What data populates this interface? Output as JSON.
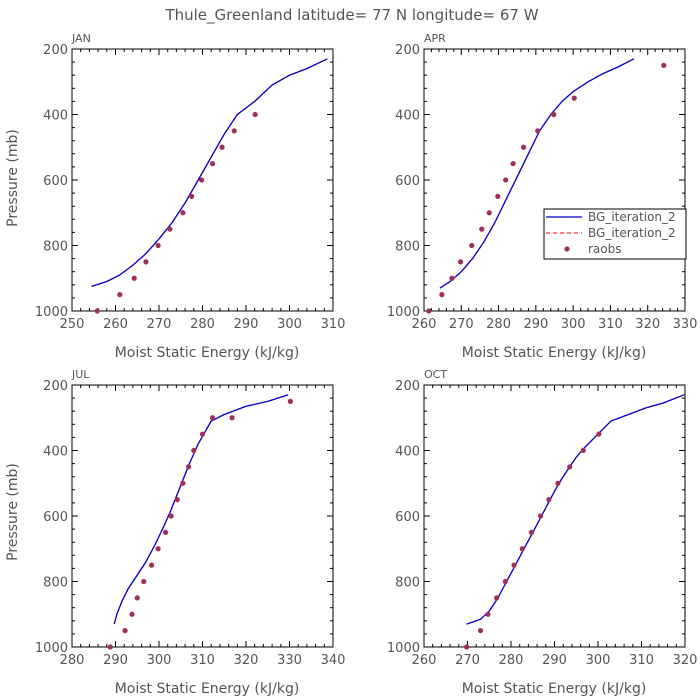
{
  "title": "Thule_Greenland  latitude= 77 N longitude= 67 W",
  "colors": {
    "model": "#0000cc",
    "model_dashed": "#ff3333",
    "raobs": "#a0305a",
    "axis": "#000000",
    "text": "#555555"
  },
  "legend": {
    "entries": [
      "BG_iteration_2",
      "BG_iteration_2",
      "raobs"
    ]
  },
  "chart_data": [
    {
      "type": "line",
      "panel": "JAN",
      "xlabel": "Moist Static Energy (kJ/kg)",
      "ylabel": "Pressure (mb)",
      "xlim": [
        250,
        310
      ],
      "ylim": [
        1000,
        200
      ],
      "xticks": [
        "250",
        "260",
        "270",
        "280",
        "290",
        "300",
        "310"
      ],
      "yticks": [
        "1000",
        "800",
        "600",
        "400",
        "200"
      ],
      "series": [
        {
          "name": "BG_iteration_2",
          "style": "solid",
          "x": [
            254.5,
            258,
            261,
            264,
            267,
            270,
            273,
            276,
            279,
            282,
            285,
            288,
            292,
            296,
            300,
            304,
            308.7
          ],
          "y": [
            925,
            910,
            890,
            860,
            825,
            780,
            730,
            670,
            600,
            530,
            460,
            400,
            360,
            310,
            280,
            260,
            230
          ]
        }
      ],
      "raobs": {
        "x": [
          255.8,
          261,
          264.3,
          267,
          269.8,
          272.5,
          275.5,
          277.5,
          279.8,
          282.3,
          284.5,
          287.3,
          292.1
        ],
        "y": [
          1000,
          950,
          900,
          850,
          800,
          750,
          700,
          650,
          600,
          550,
          500,
          450,
          400
        ]
      }
    },
    {
      "type": "line",
      "panel": "APR",
      "xlabel": "Moist Static Energy (kJ/kg)",
      "ylabel": "",
      "xlim": [
        260,
        330
      ],
      "ylim": [
        1000,
        200
      ],
      "xticks": [
        "260",
        "270",
        "280",
        "290",
        "300",
        "310",
        "320",
        "330"
      ],
      "yticks": [
        "1000",
        "800",
        "600",
        "400",
        "200"
      ],
      "series": [
        {
          "name": "BG_iteration_2",
          "style": "solid",
          "x": [
            264.3,
            267,
            270,
            273,
            276,
            279,
            282,
            285,
            288,
            291,
            294,
            297,
            300,
            304,
            308,
            312,
            316.3
          ],
          "y": [
            930,
            910,
            880,
            840,
            790,
            730,
            660,
            590,
            520,
            450,
            400,
            360,
            330,
            300,
            275,
            255,
            230
          ]
        }
      ],
      "raobs": {
        "x": [
          261.3,
          264.8,
          267.5,
          269.8,
          272.8,
          275.5,
          277.5,
          279.8,
          281.9,
          283.9,
          286.7,
          290.5,
          294.8,
          300.3,
          324.3
        ],
        "y": [
          1000,
          950,
          900,
          850,
          800,
          750,
          700,
          650,
          600,
          550,
          500,
          450,
          400,
          350,
          250
        ]
      }
    },
    {
      "type": "line",
      "panel": "JUL",
      "xlabel": "Moist Static Energy (kJ/kg)",
      "ylabel": "Pressure (mb)",
      "xlim": [
        280,
        340
      ],
      "ylim": [
        1000,
        200
      ],
      "xticks": [
        "280",
        "290",
        "300",
        "310",
        "320",
        "330",
        "340"
      ],
      "yticks": [
        "1000",
        "800",
        "600",
        "400",
        "200"
      ],
      "series": [
        {
          "name": "BG_iteration_2",
          "style": "solid",
          "x": [
            289.7,
            290.3,
            291.5,
            293,
            295,
            297,
            299,
            300.8,
            302.5,
            304,
            305.5,
            307,
            309,
            312,
            315,
            320,
            325,
            329.7
          ],
          "y": [
            930,
            900,
            860,
            820,
            780,
            740,
            690,
            640,
            590,
            540,
            490,
            440,
            380,
            310,
            290,
            265,
            250,
            230
          ]
        }
      ],
      "raobs": {
        "x": [
          288.8,
          292.2,
          293.8,
          295,
          296.5,
          298.3,
          299.8,
          301.5,
          302.8,
          304.2,
          305.5,
          306.8,
          308,
          310,
          312.3,
          316.8,
          330.2
        ],
        "y": [
          1000,
          950,
          900,
          850,
          800,
          750,
          700,
          650,
          600,
          550,
          500,
          450,
          400,
          350,
          300,
          300,
          250
        ]
      }
    },
    {
      "type": "line",
      "panel": "OCT",
      "xlabel": "Moist Static Energy (kJ/kg)",
      "ylabel": "",
      "xlim": [
        260,
        320
      ],
      "ylim": [
        1000,
        200
      ],
      "xticks": [
        "260",
        "270",
        "280",
        "290",
        "300",
        "310",
        "320"
      ],
      "yticks": [
        "1000",
        "800",
        "600",
        "400",
        "200"
      ],
      "series": [
        {
          "name": "BG_iteration_2",
          "style": "solid",
          "x": [
            269.8,
            273,
            275,
            277,
            279,
            281,
            283,
            285,
            287,
            289,
            291,
            293,
            295,
            297,
            300,
            303,
            307,
            311,
            315,
            319.8
          ],
          "y": [
            930,
            915,
            890,
            850,
            800,
            750,
            700,
            650,
            600,
            550,
            500,
            460,
            420,
            390,
            350,
            310,
            290,
            270,
            255,
            230
          ]
        }
      ],
      "raobs": {
        "x": [
          269.8,
          273,
          274.7,
          276.7,
          278.7,
          280.7,
          282.6,
          284.7,
          286.8,
          288.7,
          290.8,
          293.5,
          296.6,
          300.2
        ],
        "y": [
          1000,
          950,
          900,
          850,
          800,
          750,
          700,
          650,
          600,
          550,
          500,
          450,
          400,
          350
        ]
      }
    }
  ]
}
